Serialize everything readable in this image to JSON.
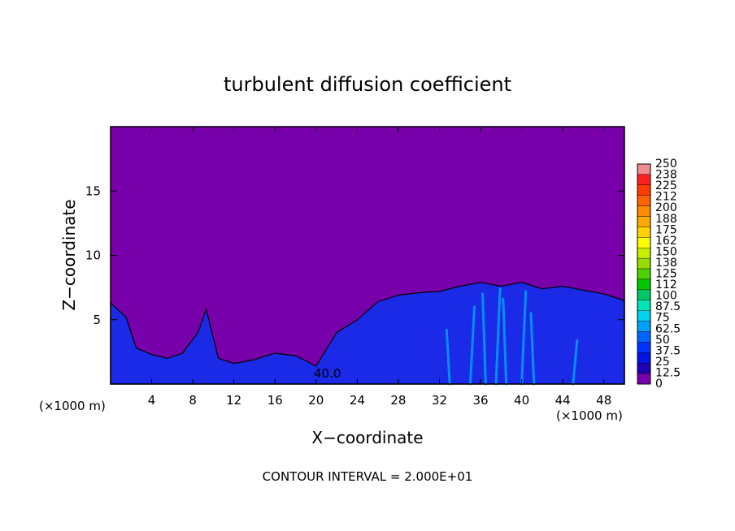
{
  "chart_data": {
    "type": "heatmap",
    "title": "turbulent diffusion coefficient",
    "xlabel": "X−coordinate",
    "ylabel": "Z−coordinate",
    "x_unit": "(×1000 m)",
    "y_unit": "(×1000 m)",
    "xlim": [
      0,
      50
    ],
    "ylim": [
      0,
      20
    ],
    "x_ticks": [
      "4",
      "8",
      "12",
      "16",
      "20",
      "24",
      "28",
      "32",
      "36",
      "40",
      "44",
      "48"
    ],
    "y_ticks": [
      "5",
      "10",
      "15"
    ],
    "footer": "CONTOUR INTERVAL = 2.000E+01",
    "contour_label": "40.0",
    "colorbar": {
      "labels": [
        "250",
        "238",
        "225",
        "212",
        "200",
        "188",
        "175",
        "162",
        "150",
        "138",
        "125",
        "112",
        "100",
        "87.5",
        "75",
        "62.5",
        "50",
        "37.5",
        "25",
        "12.5",
        "0"
      ],
      "colors": [
        "#f08c8c",
        "#ff2020",
        "#ff3c00",
        "#ff6400",
        "#ff8c00",
        "#ffaa00",
        "#ffd200",
        "#ffff00",
        "#c8f000",
        "#96dc00",
        "#50d200",
        "#00c800",
        "#00c864",
        "#00e6b4",
        "#00d2f0",
        "#00a0ff",
        "#0064ff",
        "#0032ff",
        "#0014e6",
        "#1e00b4",
        "#7800aa"
      ]
    },
    "background_value": 0,
    "boundary_layer_top": [
      [
        0,
        6.3
      ],
      [
        1.5,
        5.2
      ],
      [
        2.5,
        2.8
      ],
      [
        4,
        2.3
      ],
      [
        5.5,
        2.0
      ],
      [
        7,
        2.4
      ],
      [
        8.5,
        4.0
      ],
      [
        9.3,
        5.8
      ],
      [
        10.5,
        2.0
      ],
      [
        12,
        1.6
      ],
      [
        14,
        1.9
      ],
      [
        16,
        2.4
      ],
      [
        18,
        2.2
      ],
      [
        20,
        1.4
      ],
      [
        22,
        4.0
      ],
      [
        24,
        5.0
      ],
      [
        26,
        6.4
      ],
      [
        28,
        6.9
      ],
      [
        30,
        7.1
      ],
      [
        32,
        7.2
      ],
      [
        34,
        7.6
      ],
      [
        36,
        7.9
      ],
      [
        38,
        7.6
      ],
      [
        40,
        7.9
      ],
      [
        42,
        7.4
      ],
      [
        44,
        7.6
      ],
      [
        46,
        7.3
      ],
      [
        48,
        7.0
      ],
      [
        50,
        6.5
      ]
    ]
  }
}
